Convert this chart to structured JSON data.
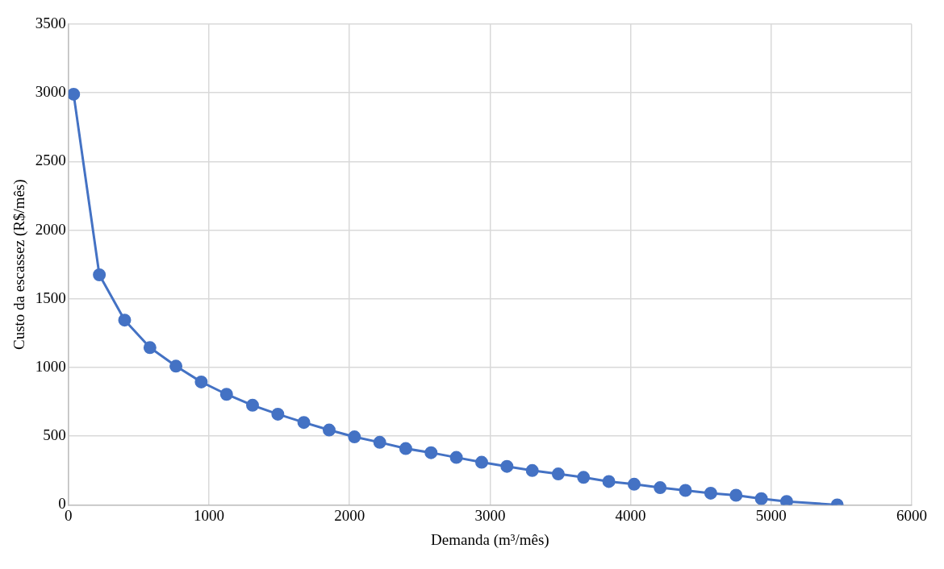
{
  "chart_data": {
    "type": "scatter",
    "xlabel": "Demanda (m³/mês)",
    "ylabel": "Custo da escassez (R$/mês)",
    "xlim": [
      0,
      6000
    ],
    "xticks": [
      0,
      1000,
      2000,
      3000,
      4000,
      5000,
      6000
    ],
    "ylim": [
      0,
      3500
    ],
    "yticks": [
      0,
      500,
      1000,
      1500,
      2000,
      2500,
      3000,
      3500
    ],
    "grid": true,
    "legend": false,
    "marker": "circle",
    "line_style": "solid",
    "series": [
      {
        "type": "line",
        "color": "#4472c4",
        "x": [
          37,
          220,
          400,
          580,
          765,
          945,
          1125,
          1310,
          1490,
          1675,
          1855,
          2035,
          2215,
          2400,
          2580,
          2760,
          2940,
          3120,
          3300,
          3485,
          3665,
          3845,
          4025,
          4210,
          4390,
          4570,
          4750,
          4930,
          5110,
          5470
        ],
        "values": [
          2990,
          1675,
          1345,
          1145,
          1010,
          895,
          805,
          725,
          660,
          600,
          545,
          495,
          455,
          410,
          380,
          345,
          310,
          280,
          250,
          225,
          200,
          170,
          150,
          125,
          105,
          85,
          70,
          45,
          25,
          0
        ]
      }
    ]
  }
}
